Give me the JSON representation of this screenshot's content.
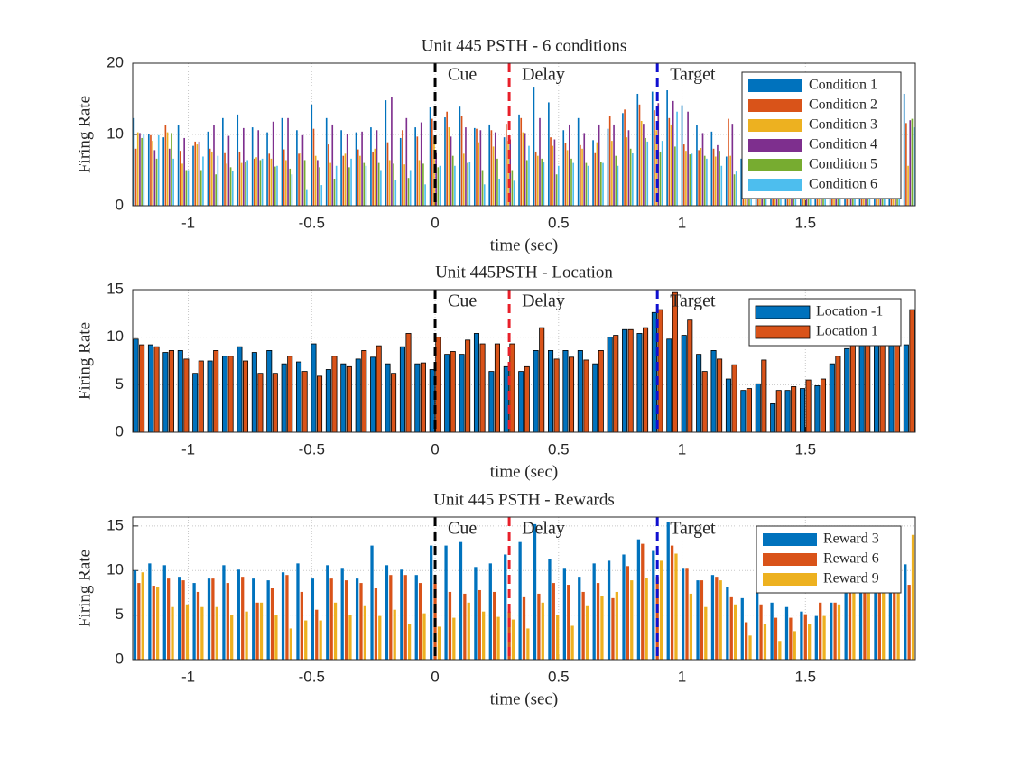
{
  "chart_data": [
    {
      "type": "bar",
      "title": "Unit 445 PSTH - 6 conditions",
      "xlabel": "time (sec)",
      "ylabel": "Firing Rate",
      "x": [
        -1.2,
        -1.14,
        -1.08,
        -1.02,
        -0.96,
        -0.9,
        -0.84,
        -0.78,
        -0.72,
        -0.66,
        -0.6,
        -0.54,
        -0.48,
        -0.42,
        -0.36,
        -0.3,
        -0.24,
        -0.18,
        -0.12,
        -0.06,
        0,
        0.06,
        0.12,
        0.18,
        0.24,
        0.3,
        0.36,
        0.42,
        0.48,
        0.54,
        0.6,
        0.66,
        0.72,
        0.78,
        0.84,
        0.9,
        0.96,
        1.02,
        1.08,
        1.14,
        1.2,
        1.26,
        1.32,
        1.38,
        1.44,
        1.5,
        1.56,
        1.62,
        1.68,
        1.74,
        1.8,
        1.86,
        1.92
      ],
      "series": [
        {
          "name": "Condition 1",
          "color": "#0072BD",
          "values": [
            12.3,
            10.0,
            9.6,
            11.3,
            8.4,
            10.4,
            12.3,
            12.8,
            11.0,
            10.3,
            12.3,
            10.6,
            14.2,
            12.3,
            10.6,
            10.3,
            11.0,
            14.8,
            9.5,
            11.0,
            13.8,
            12.4,
            13.9,
            10.9,
            11.4,
            9.6,
            12.8,
            16.7,
            14.5,
            10.6,
            12.3,
            9.2,
            10.8,
            13.0,
            15.7,
            16.0,
            16.2,
            14.1,
            11.3,
            10.4,
            6.9,
            6.6,
            7.0,
            8.2,
            11.0,
            12.9,
            12.1,
            11.7,
            10.3,
            12.5,
            11.5,
            14.4,
            15.7
          ]
        },
        {
          "name": "Condition 2",
          "color": "#D95319",
          "values": [
            8.0,
            9.9,
            11.3,
            7.7,
            9.0,
            8.0,
            7.5,
            7.6,
            6.6,
            7.3,
            7.9,
            7.3,
            10.8,
            8.6,
            7.0,
            7.9,
            7.6,
            8.9,
            10.6,
            9.7,
            12.2,
            13.2,
            12.6,
            10.8,
            10.6,
            11.5,
            12.3,
            7.6,
            9.6,
            8.8,
            8.5,
            7.5,
            12.6,
            13.5,
            14.2,
            13.4,
            12.3,
            8.6,
            7.8,
            8.0,
            12.2,
            8.7,
            10.4,
            7.5,
            9.5,
            10.8,
            11.3,
            10.8,
            12.2,
            11.8,
            11.2,
            11.8,
            11.6
          ]
        },
        {
          "name": "Condition 3",
          "color": "#EDB120",
          "values": [
            10.3,
            9.1,
            10.3,
            5.9,
            8.6,
            7.6,
            5.9,
            6.0,
            6.8,
            6.6,
            6.4,
            7.4,
            7.0,
            6.0,
            7.3,
            7.0,
            8.0,
            6.4,
            5.8,
            6.4,
            9.7,
            11.0,
            7.3,
            8.9,
            8.3,
            9.1,
            10.3,
            7.0,
            8.4,
            7.8,
            8.0,
            8.9,
            9.1,
            9.6,
            11.9,
            10.6,
            11.4,
            7.7,
            8.1,
            6.9,
            7.0,
            5.0,
            6.8,
            6.8,
            8.7,
            7.5,
            9.1,
            8.8,
            8.3,
            7.8,
            6.5,
            6.7,
            5.6
          ]
        },
        {
          "name": "Condition 4",
          "color": "#7E2F8E",
          "values": [
            10.2,
            7.8,
            8.0,
            9.5,
            9.0,
            11.3,
            9.8,
            10.9,
            10.6,
            11.8,
            12.3,
            9.9,
            6.4,
            11.4,
            10.0,
            10.4,
            10.6,
            15.3,
            12.3,
            11.7,
            7.5,
            9.7,
            11.0,
            10.6,
            10.3,
            9.3,
            10.2,
            12.3,
            9.3,
            11.4,
            10.2,
            11.4,
            11.4,
            10.6,
            11.5,
            14.4,
            14.7,
            13.2,
            10.2,
            8.5,
            11.5,
            6.0,
            7.9,
            7.0,
            8.4,
            9.2,
            8.5,
            10.2,
            9.9,
            11.3,
            10.6,
            9.5,
            12.0
          ]
        },
        {
          "name": "Condition 5",
          "color": "#77AC30",
          "values": [
            9.5,
            6.6,
            10.2,
            5.0,
            5.0,
            4.4,
            5.4,
            6.2,
            6.4,
            5.5,
            5.2,
            6.4,
            5.4,
            3.8,
            5.4,
            6.0,
            6.0,
            5.9,
            3.9,
            5.9,
            5.4,
            7.0,
            6.0,
            5.0,
            6.6,
            5.0,
            6.4,
            6.6,
            4.4,
            6.6,
            6.0,
            6.2,
            7.0,
            8.0,
            9.5,
            7.6,
            8.3,
            7.2,
            7.0,
            7.7,
            4.4,
            5.6,
            5.0,
            5.0,
            5.8,
            6.6,
            6.6,
            6.1,
            6.6,
            6.6,
            8.0,
            8.0,
            12.2
          ]
        },
        {
          "name": "Condition 6",
          "color": "#4DBEEE",
          "values": [
            10.0,
            9.9,
            6.6,
            5.0,
            6.9,
            7.0,
            4.9,
            6.4,
            6.6,
            5.6,
            4.4,
            2.2,
            2.9,
            5.6,
            6.6,
            5.6,
            5.0,
            3.6,
            5.0,
            3.0,
            5.6,
            5.6,
            6.2,
            3.0,
            3.8,
            3.5,
            8.4,
            6.1,
            5.6,
            6.0,
            5.6,
            6.0,
            5.6,
            7.4,
            9.0,
            9.1,
            13.2,
            7.3,
            6.6,
            5.6,
            4.8,
            3.8,
            6.6,
            5.3,
            5.8,
            5.0,
            5.8,
            6.6,
            6.5,
            6.6,
            6.6,
            6.6,
            11.0
          ]
        }
      ],
      "events": [
        {
          "x": 0,
          "label": "Cue",
          "color": "#000000"
        },
        {
          "x": 0.3,
          "label": "Delay",
          "color": "#E8202A"
        },
        {
          "x": 0.9,
          "label": "Target",
          "color": "#1010D0"
        }
      ],
      "xlim": [
        -1.225,
        1.945
      ],
      "xticks": [
        -1,
        -0.5,
        0,
        0.5,
        1,
        1.5
      ],
      "ylim": [
        0,
        20
      ],
      "yticks": [
        0,
        10,
        20
      ],
      "grid": true,
      "legend": "northeast",
      "bar_edge": false
    },
    {
      "type": "bar",
      "title": "Unit 445PSTH - Location",
      "xlabel": "time (sec)",
      "ylabel": "Firing Rate",
      "x": [
        -1.2,
        -1.14,
        -1.08,
        -1.02,
        -0.96,
        -0.9,
        -0.84,
        -0.78,
        -0.72,
        -0.66,
        -0.6,
        -0.54,
        -0.48,
        -0.42,
        -0.36,
        -0.3,
        -0.24,
        -0.18,
        -0.12,
        -0.06,
        0,
        0.06,
        0.12,
        0.18,
        0.24,
        0.3,
        0.36,
        0.42,
        0.48,
        0.54,
        0.6,
        0.66,
        0.72,
        0.78,
        0.84,
        0.9,
        0.96,
        1.02,
        1.08,
        1.14,
        1.2,
        1.26,
        1.32,
        1.38,
        1.44,
        1.5,
        1.56,
        1.62,
        1.68,
        1.74,
        1.8,
        1.86,
        1.92
      ],
      "series": [
        {
          "name": "Location -1",
          "color": "#0072BD",
          "values": [
            9.8,
            9.2,
            8.4,
            8.6,
            6.2,
            7.5,
            8.0,
            9.0,
            8.4,
            8.6,
            7.2,
            7.4,
            9.3,
            6.6,
            7.2,
            7.7,
            7.9,
            7.2,
            9.0,
            7.2,
            6.6,
            8.2,
            8.2,
            10.4,
            6.4,
            6.9,
            6.4,
            8.6,
            8.6,
            8.6,
            8.6,
            7.2,
            10.0,
            10.8,
            10.4,
            12.6,
            9.8,
            10.2,
            8.2,
            8.6,
            5.6,
            4.4,
            5.1,
            3.0,
            4.4,
            4.6,
            4.9,
            7.2,
            8.8,
            9.2,
            9.2,
            9.2,
            9.2
          ]
        },
        {
          "name": "Location 1",
          "color": "#D95319",
          "values": [
            9.2,
            9.0,
            8.6,
            7.7,
            7.5,
            8.6,
            8.0,
            7.5,
            6.2,
            6.2,
            8.0,
            6.4,
            5.9,
            8.0,
            6.9,
            8.6,
            9.1,
            6.2,
            10.4,
            7.3,
            10.0,
            8.5,
            9.7,
            9.3,
            9.3,
            9.3,
            6.9,
            11.0,
            7.7,
            7.9,
            7.6,
            8.6,
            10.2,
            10.8,
            11.0,
            12.9,
            14.7,
            11.8,
            6.4,
            7.7,
            7.1,
            4.6,
            7.6,
            4.4,
            4.8,
            5.5,
            5.6,
            8.0,
            9.2,
            9.2,
            9.2,
            9.2,
            12.9
          ]
        }
      ],
      "events": [
        {
          "x": 0,
          "label": "Cue",
          "color": "#000000"
        },
        {
          "x": 0.3,
          "label": "Delay",
          "color": "#E8202A"
        },
        {
          "x": 0.9,
          "label": "Target",
          "color": "#1010D0"
        }
      ],
      "xlim": [
        -1.225,
        1.945
      ],
      "xticks": [
        -1,
        -0.5,
        0,
        0.5,
        1,
        1.5
      ],
      "ylim": [
        0,
        15
      ],
      "yticks": [
        0,
        5,
        10,
        15
      ],
      "grid": true,
      "legend": "northeast",
      "bar_edge": true
    },
    {
      "type": "bar",
      "title": "Unit 445 PSTH - Rewards",
      "xlabel": "time (sec)",
      "ylabel": "Firing Rate",
      "x": [
        -1.2,
        -1.14,
        -1.08,
        -1.02,
        -0.96,
        -0.9,
        -0.84,
        -0.78,
        -0.72,
        -0.66,
        -0.6,
        -0.54,
        -0.48,
        -0.42,
        -0.36,
        -0.3,
        -0.24,
        -0.18,
        -0.12,
        -0.06,
        0,
        0.06,
        0.12,
        0.18,
        0.24,
        0.3,
        0.36,
        0.42,
        0.48,
        0.54,
        0.6,
        0.66,
        0.72,
        0.78,
        0.84,
        0.9,
        0.96,
        1.02,
        1.08,
        1.14,
        1.2,
        1.26,
        1.32,
        1.38,
        1.44,
        1.5,
        1.56,
        1.62,
        1.68,
        1.74,
        1.8,
        1.86,
        1.92
      ],
      "series": [
        {
          "name": "Reward 3",
          "color": "#0072BD",
          "values": [
            10.0,
            10.8,
            10.6,
            9.3,
            8.6,
            9.1,
            10.6,
            10.1,
            9.1,
            8.9,
            9.8,
            10.8,
            9.1,
            10.6,
            10.2,
            9.1,
            12.8,
            10.6,
            10.1,
            9.5,
            12.8,
            12.8,
            13.2,
            10.4,
            10.8,
            11.8,
            13.2,
            15.2,
            11.3,
            10.2,
            9.3,
            10.8,
            11.1,
            11.8,
            13.5,
            12.2,
            15.4,
            10.2,
            8.9,
            9.5,
            8.1,
            6.9,
            8.9,
            6.4,
            5.9,
            5.4,
            4.9,
            6.4,
            9.2,
            9.2,
            9.2,
            9.2,
            10.7
          ]
        },
        {
          "name": "Reward 6",
          "color": "#D95319",
          "values": [
            8.6,
            8.3,
            9.1,
            8.9,
            7.6,
            9.1,
            8.6,
            9.3,
            6.4,
            8.0,
            9.5,
            7.6,
            5.6,
            9.1,
            8.9,
            8.6,
            8.0,
            9.5,
            9.5,
            8.6,
            8.6,
            7.6,
            7.4,
            7.8,
            7.6,
            5.4,
            7.0,
            7.4,
            8.6,
            8.4,
            7.6,
            8.6,
            6.9,
            10.5,
            13.0,
            9.3,
            12.8,
            10.2,
            8.9,
            9.3,
            7.0,
            4.2,
            6.2,
            4.7,
            4.7,
            5.1,
            6.4,
            6.4,
            8.4,
            8.7,
            9.2,
            9.2,
            8.4
          ]
        },
        {
          "name": "Reward 9",
          "color": "#EDB120",
          "values": [
            9.8,
            8.1,
            5.9,
            6.2,
            5.9,
            5.9,
            5.0,
            5.4,
            6.4,
            5.0,
            3.5,
            4.4,
            4.4,
            6.4,
            5.0,
            6.0,
            4.9,
            5.6,
            4.0,
            5.2,
            3.7,
            4.7,
            6.4,
            5.4,
            4.8,
            4.5,
            3.5,
            6.4,
            5.0,
            3.8,
            6.0,
            7.1,
            7.6,
            8.9,
            9.2,
            11.1,
            11.9,
            7.4,
            5.9,
            8.9,
            6.2,
            2.7,
            4.0,
            2.1,
            3.2,
            4.0,
            4.9,
            6.2,
            7.5,
            7.6,
            8.0,
            8.0,
            14.0
          ]
        }
      ],
      "events": [
        {
          "x": 0,
          "label": "Cue",
          "color": "#000000"
        },
        {
          "x": 0.3,
          "label": "Delay",
          "color": "#E8202A"
        },
        {
          "x": 0.9,
          "label": "Target",
          "color": "#1010D0"
        }
      ],
      "xlim": [
        -1.225,
        1.945
      ],
      "xticks": [
        -1,
        -0.5,
        0,
        0.5,
        1,
        1.5
      ],
      "ylim": [
        0,
        16
      ],
      "yticks": [
        0,
        5,
        10,
        15
      ],
      "grid": true,
      "legend": "northeast",
      "bar_edge": false
    }
  ]
}
